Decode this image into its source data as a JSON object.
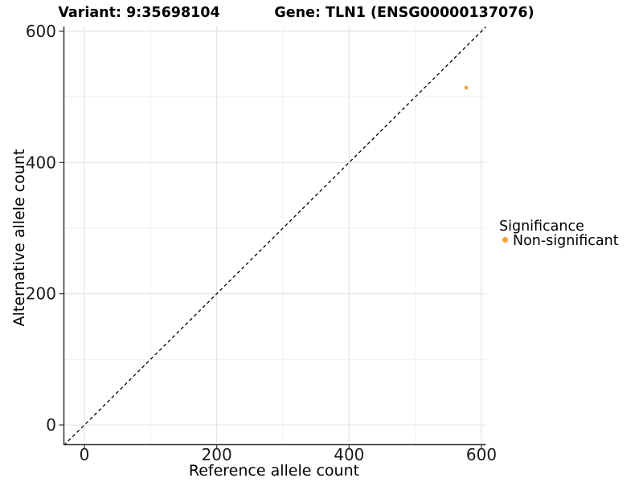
{
  "title": {
    "variant": "Variant: 9:35698104",
    "gene": "Gene: TLN1 (ENSG00000137076)"
  },
  "axes": {
    "x": {
      "label": "Reference allele count",
      "ticks": [
        0,
        200,
        400,
        600
      ],
      "tick_labels": [
        "0",
        "200",
        "400",
        "600"
      ]
    },
    "y": {
      "label": "Alternative allele count",
      "ticks": [
        0,
        200,
        400,
        600
      ],
      "tick_labels": [
        "0",
        "200",
        "400",
        "600"
      ]
    }
  },
  "legend": {
    "title": "Significance",
    "items": [
      {
        "label": "Non-significant",
        "color": "#F9A23B"
      }
    ]
  },
  "chart_data": {
    "type": "scatter",
    "title": "Variant: 9:35698104   Gene: TLN1 (ENSG00000137076)",
    "xlabel": "Reference allele count",
    "ylabel": "Alternative allele count",
    "xlim": [
      -31,
      608
    ],
    "ylim": [
      -31,
      608
    ],
    "grid": "on",
    "legend_position": "right",
    "minor_gridlines": [
      100,
      300,
      500
    ],
    "identity_line": {
      "style": "dashed",
      "from": [
        -31,
        -31
      ],
      "to": [
        608,
        608
      ]
    },
    "points": [
      {
        "x": 577,
        "y": 514,
        "significance": "Non-significant",
        "color": "#F9A23B"
      }
    ]
  }
}
